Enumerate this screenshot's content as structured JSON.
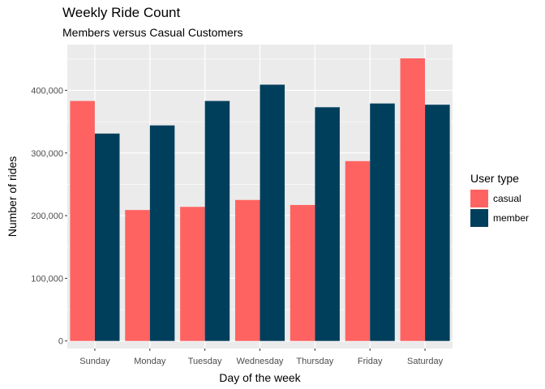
{
  "chart_data": {
    "type": "bar",
    "title": "Weekly Ride Count",
    "subtitle": "Members versus Casual Customers",
    "xlabel": "Day of the week",
    "ylabel": "Number of rides",
    "categories": [
      "Sunday",
      "Monday",
      "Tuesday",
      "Wednesday",
      "Thursday",
      "Friday",
      "Saturday"
    ],
    "series": [
      {
        "name": "casual",
        "color": "#ff6361",
        "values": [
          383000,
          209000,
          214000,
          225000,
          217000,
          287000,
          451000
        ]
      },
      {
        "name": "member",
        "color": "#003f5c",
        "values": [
          331000,
          344000,
          383000,
          409000,
          373000,
          379000,
          377000
        ]
      }
    ],
    "ylim": [
      -12000,
      473000
    ],
    "yticks": [
      0,
      100000,
      200000,
      300000,
      400000
    ],
    "ytick_labels": [
      "0",
      "100,000",
      "200,000",
      "300,000",
      "400,000"
    ],
    "legend": {
      "title": "User type",
      "position": "right"
    },
    "grid": true,
    "background": "#ebebeb"
  }
}
